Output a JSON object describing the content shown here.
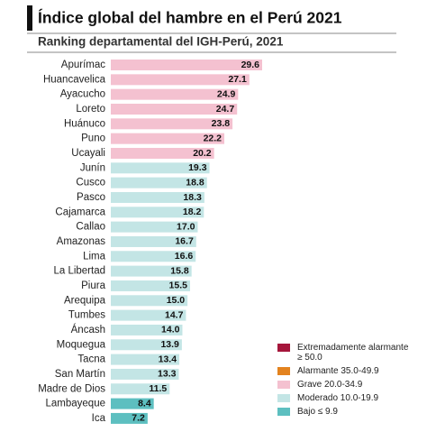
{
  "chart_data": {
    "type": "bar",
    "orientation": "horizontal",
    "title": "Índice global del hambre en el Perú 2021",
    "subtitle": "Ranking departamental del IGH-Perú, 2021",
    "categories": [
      "Apurímac",
      "Huancavelica",
      "Ayacucho",
      "Loreto",
      "Huánuco",
      "Puno",
      "Ucayali",
      "Junín",
      "Cusco",
      "Pasco",
      "Cajamarca",
      "Callao",
      "Amazonas",
      "Lima",
      "La Libertad",
      "Piura",
      "Arequipa",
      "Tumbes",
      "Áncash",
      "Moquegua",
      "Tacna",
      "San Martín",
      "Madre de Dios",
      "Lambayeque",
      "Ica"
    ],
    "values": [
      29.6,
      27.1,
      24.9,
      24.7,
      23.8,
      22.2,
      20.2,
      19.3,
      18.8,
      18.3,
      18.2,
      17.0,
      16.7,
      16.6,
      15.8,
      15.5,
      15.0,
      14.7,
      14.0,
      13.9,
      13.4,
      13.3,
      11.5,
      8.4,
      7.2
    ],
    "value_labels": [
      "29.6",
      "27.1",
      "24.9",
      "24.7",
      "23.8",
      "22.2",
      "20.2",
      "19.3",
      "18.8",
      "18.3",
      "18.2",
      "17.0",
      "16.7",
      "16.6",
      "15.8",
      "15.5",
      "15.0",
      "14.7",
      "14.0",
      "13.9",
      "13.4",
      "13.3",
      "11.5",
      "8.4",
      "7.2"
    ],
    "colors": [
      "#f4c1d0",
      "#f4c1d0",
      "#f4c1d0",
      "#f4c1d0",
      "#f4c1d0",
      "#f4c1d0",
      "#f4c1d0",
      "#c3e5e5",
      "#c3e5e5",
      "#c3e5e5",
      "#c3e5e5",
      "#c3e5e5",
      "#c3e5e5",
      "#c3e5e5",
      "#c3e5e5",
      "#c3e5e5",
      "#c3e5e5",
      "#c3e5e5",
      "#c3e5e5",
      "#c3e5e5",
      "#c3e5e5",
      "#c3e5e5",
      "#c3e5e5",
      "#5dbfc0",
      "#5dbfc0"
    ],
    "legend": [
      {
        "name": "Extremadamente alarmante ≥ 50.0",
        "color": "#a5163b"
      },
      {
        "name": "Alarmante 35.0-49.9",
        "color": "#e3831f"
      },
      {
        "name": "Grave 20.0-34.9",
        "color": "#f4c1d0"
      },
      {
        "name": "Moderado 10.0-19.9",
        "color": "#c3e5e5"
      },
      {
        "name": "Bajo ≤ 9.9",
        "color": "#5dbfc0"
      }
    ]
  }
}
